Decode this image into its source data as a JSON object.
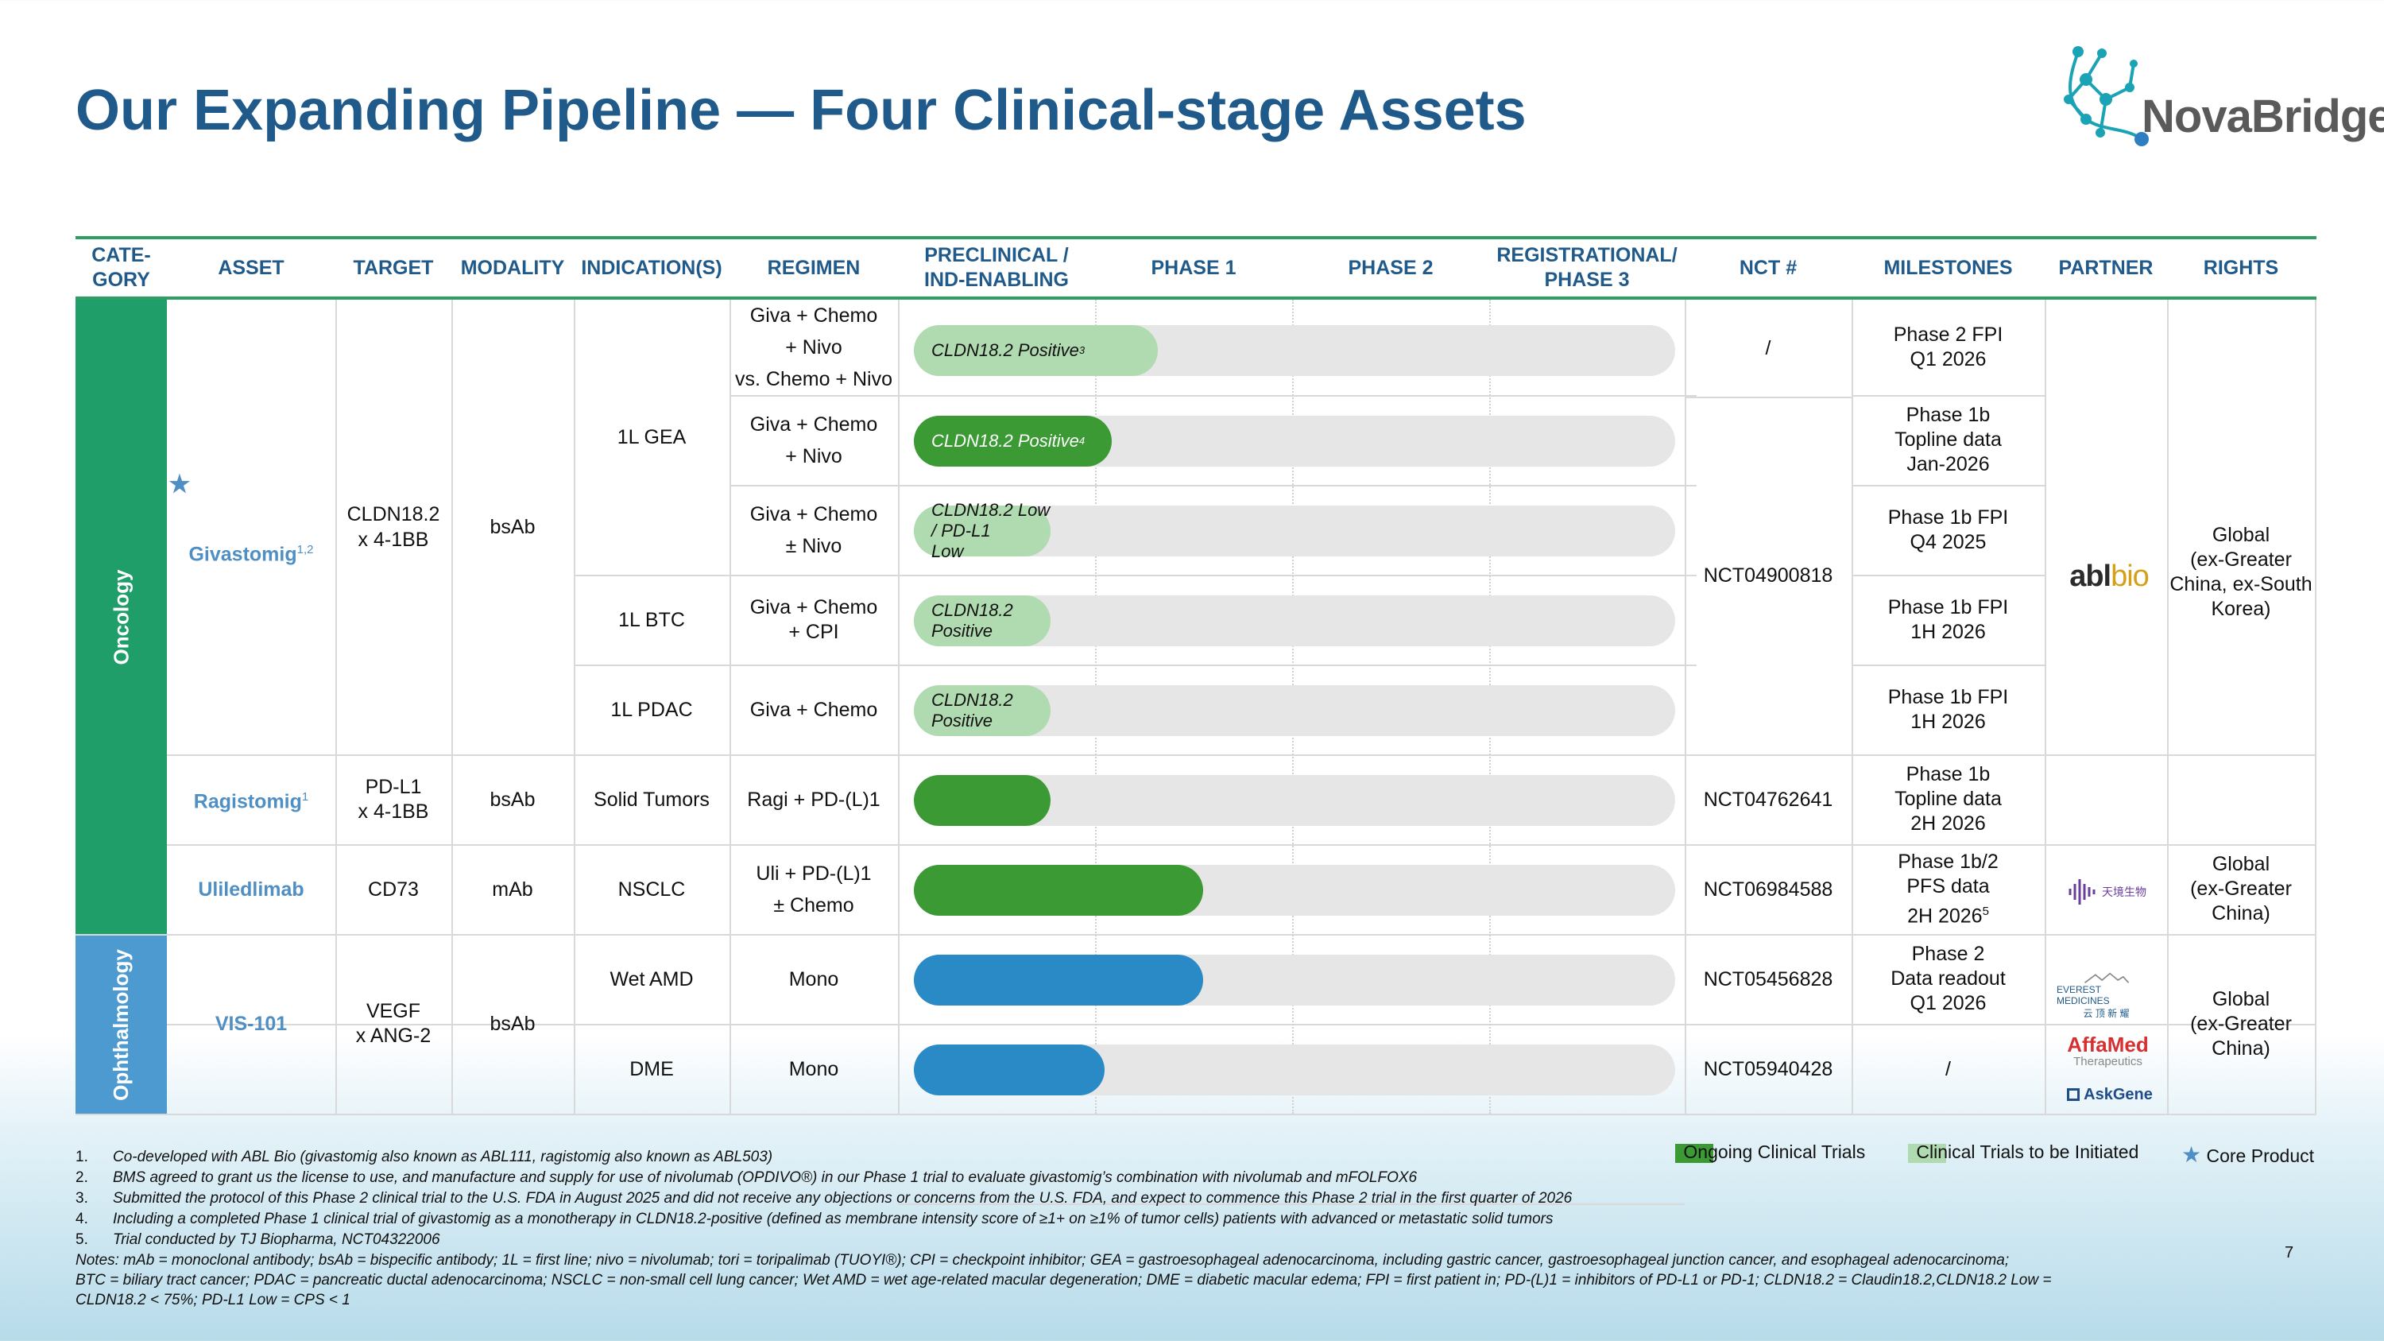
{
  "title": "Our Expanding Pipeline — Four Clinical-stage Assets",
  "logo": {
    "text": "NovaBridge",
    "icon": "molecule-network-icon",
    "colors": [
      "#1aa3b4",
      "#2d7fc1",
      "#5a5a5a"
    ]
  },
  "headers": {
    "category": "CATE-\nGORY",
    "asset": "ASSET",
    "target": "TARGET",
    "modality": "MODALITY",
    "indication": "INDICATION(S)",
    "regimen": "REGIMEN",
    "preclinical": "PRECLINICAL /\nIND-ENABLING",
    "phase1": "PHASE 1",
    "phase2": "PHASE 2",
    "phase3": "REGISTRATIONAL/\nPHASE 3",
    "nct": "NCT #",
    "milestones": "MILESTONES",
    "partner": "PARTNER",
    "rights": "RIGHTS"
  },
  "categories": {
    "oncology": "Oncology",
    "ophthalmology": "Ophthalmology"
  },
  "assets": {
    "givastomig": {
      "star": "★",
      "name": "Givastomig",
      "sup": "1,2",
      "target": "CLDN18.2\nx 4-1BB",
      "modality": "bsAb"
    },
    "ragistomig": {
      "name": "Ragistomig",
      "sup": "1",
      "target": "PD-L1\nx 4-1BB",
      "modality": "bsAb"
    },
    "uliledlimab": {
      "name": "Uliledlimab",
      "target": "CD73",
      "modality": "mAb"
    },
    "vis101": {
      "name": "VIS-101",
      "target": "VEGF\nx ANG-2",
      "modality": "bsAb"
    }
  },
  "indications": {
    "gea": "1L GEA",
    "btc": "1L BTC",
    "pdac": "1L PDAC",
    "solid": "Solid Tumors",
    "nsclc": "NSCLC",
    "wetamd": "Wet AMD",
    "dme": "DME"
  },
  "regimens": {
    "r1": "Giva + Chemo\n+ Nivo\nvs. Chemo + Nivo",
    "r2": "Giva + Chemo\n+ Nivo",
    "r3": "Giva + Chemo\n± Nivo",
    "r4": "Giva + Chemo\n+ CPI",
    "r5": "Giva + Chemo",
    "r6": "Ragi + PD-(L)1",
    "r7": "Uli + PD-(L)1\n± Chemo",
    "r8": "Mono",
    "r9": "Mono"
  },
  "bars": [
    {
      "label": "CLDN18.2 Positive",
      "sup": "3",
      "status": "to-be-initiated",
      "progress": 0.32
    },
    {
      "label": "CLDN18.2 Positive",
      "sup": "4",
      "status": "ongoing",
      "progress": 0.26
    },
    {
      "label": "CLDN18.2 Low / PD-L1\nLow",
      "sup": "",
      "status": "to-be-initiated",
      "progress": 0.18
    },
    {
      "label": "CLDN18.2 Positive",
      "sup": "",
      "status": "to-be-initiated",
      "progress": 0.18
    },
    {
      "label": "CLDN18.2 Positive",
      "sup": "",
      "status": "to-be-initiated",
      "progress": 0.18
    },
    {
      "label": "",
      "sup": "",
      "status": "ongoing",
      "progress": 0.18
    },
    {
      "label": "",
      "sup": "",
      "status": "ongoing",
      "progress": 0.38
    },
    {
      "label": "",
      "sup": "",
      "status": "ophthalmology",
      "progress": 0.38
    },
    {
      "label": "",
      "sup": "",
      "status": "ophthalmology",
      "progress": 0.25
    }
  ],
  "bar_colors": {
    "ongoing": "#3c9a35",
    "to-be-initiated": "#b0dbb0",
    "ophthalmology": "#2a8ac6",
    "track": "#e6e6e6",
    "accent": "#2e9e63"
  },
  "nct": {
    "r1": "/",
    "giva": "NCT04900818",
    "ragi": "NCT04762641",
    "uli": "NCT06984588",
    "vis_amd": "NCT05456828",
    "vis_dme": "NCT05940428"
  },
  "milestones": {
    "m1": "Phase 2 FPI\nQ1 2026",
    "m2": "Phase 1b\nTopline data\nJan-2026",
    "m3": "Phase 1b FPI\nQ4 2025",
    "m4": "Phase 1b FPI\n1H 2026",
    "m5": "Phase 1b FPI\n1H 2026",
    "m6": "Phase 1b\nTopline data\n2H 2026",
    "m7": "Phase 1b/2\nPFS data\n2H 2026",
    "m7_sup": "5",
    "m8": "Phase 2\nData readout\nQ1 2026",
    "m9": "/"
  },
  "partners": {
    "abl": {
      "main": "abl",
      "accent": "bio"
    },
    "tj": "天境生物",
    "everest": {
      "line1": "EVEREST MEDICINES",
      "line2": "云 顶 新 耀"
    },
    "affamed": {
      "name": "AffaMed",
      "sub": "Therapeutics"
    },
    "askgene": "AskGene"
  },
  "rights": {
    "giva": "Global\n(ex-Greater\nChina, ex-South\nKorea)",
    "uli": "Global\n(ex-Greater\nChina)",
    "vis": "Global\n(ex-Greater\nChina)"
  },
  "legend": {
    "ongoing": "Ongoing Clinical Trials",
    "to_be_initiated": "Clinical Trials to be Initiated",
    "core_star": "★",
    "core": "Core Product"
  },
  "footnotes": [
    {
      "num": "1.",
      "text": "Co-developed with ABL Bio (givastomig also known as ABL111, ragistomig also known as ABL503)"
    },
    {
      "num": "2.",
      "text": "BMS agreed to grant us the license to use, and manufacture and supply for use of nivolumab (OPDIVO®) in our Phase 1 trial  to evaluate givastomig’s combination with nivolumab and mFOLFOX6"
    },
    {
      "num": "3.",
      "text": "Submitted the protocol of this Phase 2 clinical trial to the U.S. FDA in August 2025 and did not receive any objections or concerns from the U.S. FDA, and expect to commence this Phase 2 trial in the first quarter of 2026"
    },
    {
      "num": "4.",
      "text": "Including a completed Phase 1 clinical trial of givastomig as a monotherapy in CLDN18.2-positive (defined as membrane intensity score of ≥1+ on ≥1% of tumor cells) patients with advanced or metastatic solid tumors"
    },
    {
      "num": "5.",
      "text": "Trial conducted by TJ Biopharma, NCT04322006"
    }
  ],
  "abbreviations": "Notes: mAb = monoclonal antibody; bsAb = bispecific antibody; 1L = first line; nivo = nivolumab; tori = toripalimab (TUOYI®); CPI = checkpoint inhibitor; GEA = gastroesophageal adenocarcinoma, including gastric cancer, gastroesophageal junction cancer, and esophageal adenocarcinoma;\nBTC = biliary tract cancer; PDAC = pancreatic ductal adenocarcinoma; NSCLC = non-small cell lung cancer; Wet AMD = wet age-related macular degeneration; DME = diabetic macular edema; FPI = first patient in; PD-(L)1 = inhibitors of PD-L1 or PD-1; CLDN18.2 = Claudin18.2,CLDN18.2 Low =\nCLDN18.2 < 75%; PD-L1 Low = CPS < 1",
  "page_number": "7"
}
